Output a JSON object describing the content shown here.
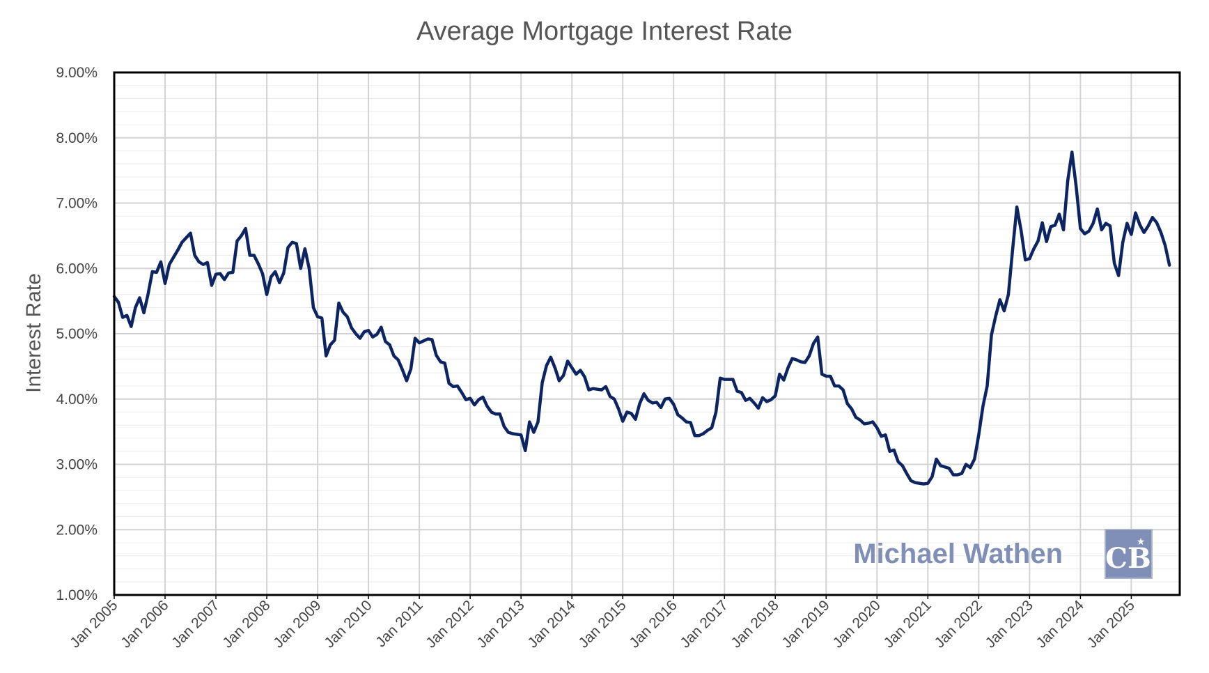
{
  "chart_data": {
    "type": "line",
    "title": "Average Mortgage Interest Rate",
    "xlabel": "",
    "ylabel": "Interest Rate",
    "ylim": [
      0.01,
      0.09
    ],
    "ytick_step": 0.01,
    "y_format": "percent-2",
    "grid": true,
    "x_tick_labels": [
      "Jan 2005",
      "Jan 2006",
      "Jan 2007",
      "Jan 2008",
      "Jan 2009",
      "Jan 2010",
      "Jan 2011",
      "Jan 2012",
      "Jan 2013",
      "Jan 2014",
      "Jan 2015",
      "Jan 2016",
      "Jan 2017",
      "Jan 2018",
      "Jan 2019",
      "Jan 2020",
      "Jan 2021",
      "Jan 2022",
      "Jan 2023",
      "Jan 2024",
      "Jan 2025"
    ],
    "series": [
      {
        "color": "#0c2461",
        "points": [
          [
            "2005-01",
            5.57
          ],
          [
            "2005-02",
            5.48
          ],
          [
            "2005-03",
            5.25
          ],
          [
            "2005-04",
            5.28
          ],
          [
            "2005-05",
            5.11
          ],
          [
            "2005-06",
            5.4
          ],
          [
            "2005-07",
            5.55
          ],
          [
            "2005-08",
            5.32
          ],
          [
            "2005-09",
            5.61
          ],
          [
            "2005-10",
            5.95
          ],
          [
            "2005-11",
            5.94
          ],
          [
            "2005-12",
            6.1
          ],
          [
            "2006-01",
            5.77
          ],
          [
            "2006-02",
            6.06
          ],
          [
            "2006-03",
            6.17
          ],
          [
            "2006-04",
            6.28
          ],
          [
            "2006-05",
            6.4
          ],
          [
            "2006-06",
            6.47
          ],
          [
            "2006-07",
            6.54
          ],
          [
            "2006-08",
            6.2
          ],
          [
            "2006-09",
            6.1
          ],
          [
            "2006-10",
            6.06
          ],
          [
            "2006-11",
            6.09
          ],
          [
            "2006-12",
            5.74
          ],
          [
            "2007-01",
            5.91
          ],
          [
            "2007-02",
            5.92
          ],
          [
            "2007-03",
            5.83
          ],
          [
            "2007-04",
            5.93
          ],
          [
            "2007-05",
            5.94
          ],
          [
            "2007-06",
            6.42
          ],
          [
            "2007-07",
            6.5
          ],
          [
            "2007-08",
            6.61
          ],
          [
            "2007-09",
            6.2
          ],
          [
            "2007-10",
            6.2
          ],
          [
            "2007-11",
            6.07
          ],
          [
            "2007-12",
            5.92
          ],
          [
            "2008-01",
            5.6
          ],
          [
            "2008-02",
            5.87
          ],
          [
            "2008-03",
            5.95
          ],
          [
            "2008-04",
            5.78
          ],
          [
            "2008-05",
            5.93
          ],
          [
            "2008-06",
            6.32
          ],
          [
            "2008-07",
            6.4
          ],
          [
            "2008-08",
            6.38
          ],
          [
            "2008-09",
            6.0
          ],
          [
            "2008-10",
            6.3
          ],
          [
            "2008-11",
            6.0
          ],
          [
            "2008-12",
            5.4
          ],
          [
            "2009-01",
            5.26
          ],
          [
            "2009-02",
            5.24
          ],
          [
            "2009-03",
            4.66
          ],
          [
            "2009-04",
            4.83
          ],
          [
            "2009-05",
            4.9
          ],
          [
            "2009-06",
            5.47
          ],
          [
            "2009-07",
            5.33
          ],
          [
            "2009-08",
            5.26
          ],
          [
            "2009-09",
            5.09
          ],
          [
            "2009-10",
            5.0
          ],
          [
            "2009-11",
            4.93
          ],
          [
            "2009-12",
            5.03
          ],
          [
            "2010-01",
            5.05
          ],
          [
            "2010-02",
            4.95
          ],
          [
            "2010-03",
            4.99
          ],
          [
            "2010-04",
            5.1
          ],
          [
            "2010-05",
            4.88
          ],
          [
            "2010-06",
            4.83
          ],
          [
            "2010-07",
            4.66
          ],
          [
            "2010-08",
            4.6
          ],
          [
            "2010-09",
            4.45
          ],
          [
            "2010-10",
            4.28
          ],
          [
            "2010-11",
            4.46
          ],
          [
            "2010-12",
            4.93
          ],
          [
            "2011-01",
            4.86
          ],
          [
            "2011-02",
            4.89
          ],
          [
            "2011-03",
            4.92
          ],
          [
            "2011-04",
            4.91
          ],
          [
            "2011-05",
            4.67
          ],
          [
            "2011-06",
            4.57
          ],
          [
            "2011-07",
            4.55
          ],
          [
            "2011-08",
            4.24
          ],
          [
            "2011-09",
            4.19
          ],
          [
            "2011-10",
            4.2
          ],
          [
            "2011-11",
            4.1
          ],
          [
            "2011-12",
            3.99
          ],
          [
            "2012-01",
            4.01
          ],
          [
            "2012-02",
            3.91
          ],
          [
            "2012-03",
            3.99
          ],
          [
            "2012-04",
            4.03
          ],
          [
            "2012-05",
            3.89
          ],
          [
            "2012-06",
            3.8
          ],
          [
            "2012-07",
            3.77
          ],
          [
            "2012-08",
            3.77
          ],
          [
            "2012-09",
            3.58
          ],
          [
            "2012-10",
            3.49
          ],
          [
            "2012-11",
            3.47
          ],
          [
            "2012-12",
            3.46
          ],
          [
            "2013-01",
            3.45
          ],
          [
            "2013-02",
            3.21
          ],
          [
            "2013-03",
            3.65
          ],
          [
            "2013-04",
            3.49
          ],
          [
            "2013-05",
            3.65
          ],
          [
            "2013-06",
            4.25
          ],
          [
            "2013-07",
            4.51
          ],
          [
            "2013-08",
            4.64
          ],
          [
            "2013-09",
            4.48
          ],
          [
            "2013-10",
            4.28
          ],
          [
            "2013-11",
            4.36
          ],
          [
            "2013-12",
            4.58
          ],
          [
            "2014-01",
            4.48
          ],
          [
            "2014-02",
            4.38
          ],
          [
            "2014-03",
            4.44
          ],
          [
            "2014-04",
            4.34
          ],
          [
            "2014-05",
            4.14
          ],
          [
            "2014-06",
            4.16
          ],
          [
            "2014-07",
            4.15
          ],
          [
            "2014-08",
            4.14
          ],
          [
            "2014-09",
            4.19
          ],
          [
            "2014-10",
            4.04
          ],
          [
            "2014-11",
            4.0
          ],
          [
            "2014-12",
            3.85
          ],
          [
            "2015-01",
            3.66
          ],
          [
            "2015-02",
            3.8
          ],
          [
            "2015-03",
            3.78
          ],
          [
            "2015-04",
            3.69
          ],
          [
            "2015-05",
            3.93
          ],
          [
            "2015-06",
            4.08
          ],
          [
            "2015-07",
            3.98
          ],
          [
            "2015-08",
            3.94
          ],
          [
            "2015-09",
            3.95
          ],
          [
            "2015-10",
            3.87
          ],
          [
            "2015-11",
            4.0
          ],
          [
            "2015-12",
            4.01
          ],
          [
            "2016-01",
            3.92
          ],
          [
            "2016-02",
            3.76
          ],
          [
            "2016-03",
            3.71
          ],
          [
            "2016-04",
            3.65
          ],
          [
            "2016-05",
            3.64
          ],
          [
            "2016-06",
            3.44
          ],
          [
            "2016-07",
            3.44
          ],
          [
            "2016-08",
            3.47
          ],
          [
            "2016-09",
            3.52
          ],
          [
            "2016-10",
            3.56
          ],
          [
            "2016-11",
            3.8
          ],
          [
            "2016-12",
            4.32
          ],
          [
            "2017-01",
            4.3
          ],
          [
            "2017-02",
            4.3
          ],
          [
            "2017-03",
            4.3
          ],
          [
            "2017-04",
            4.12
          ],
          [
            "2017-05",
            4.1
          ],
          [
            "2017-06",
            3.98
          ],
          [
            "2017-07",
            4.01
          ],
          [
            "2017-08",
            3.94
          ],
          [
            "2017-09",
            3.86
          ],
          [
            "2017-10",
            4.02
          ],
          [
            "2017-11",
            3.96
          ],
          [
            "2017-12",
            3.99
          ],
          [
            "2018-01",
            4.05
          ],
          [
            "2018-02",
            4.38
          ],
          [
            "2018-03",
            4.29
          ],
          [
            "2018-04",
            4.48
          ],
          [
            "2018-05",
            4.62
          ],
          [
            "2018-06",
            4.6
          ],
          [
            "2018-07",
            4.57
          ],
          [
            "2018-08",
            4.56
          ],
          [
            "2018-09",
            4.66
          ],
          [
            "2018-10",
            4.85
          ],
          [
            "2018-11",
            4.95
          ],
          [
            "2018-12",
            4.38
          ],
          [
            "2019-01",
            4.35
          ],
          [
            "2019-02",
            4.35
          ],
          [
            "2019-03",
            4.2
          ],
          [
            "2019-04",
            4.2
          ],
          [
            "2019-05",
            4.14
          ],
          [
            "2019-06",
            3.93
          ],
          [
            "2019-07",
            3.85
          ],
          [
            "2019-08",
            3.72
          ],
          [
            "2019-09",
            3.68
          ],
          [
            "2019-10",
            3.62
          ],
          [
            "2019-11",
            3.63
          ],
          [
            "2019-12",
            3.65
          ],
          [
            "2020-01",
            3.56
          ],
          [
            "2020-02",
            3.43
          ],
          [
            "2020-03",
            3.45
          ],
          [
            "2020-04",
            3.2
          ],
          [
            "2020-05",
            3.22
          ],
          [
            "2020-06",
            3.04
          ],
          [
            "2020-07",
            2.98
          ],
          [
            "2020-08",
            2.86
          ],
          [
            "2020-09",
            2.75
          ],
          [
            "2020-10",
            2.72
          ],
          [
            "2020-11",
            2.71
          ],
          [
            "2020-12",
            2.7
          ],
          [
            "2021-01",
            2.71
          ],
          [
            "2021-02",
            2.81
          ],
          [
            "2021-03",
            3.08
          ],
          [
            "2021-04",
            2.98
          ],
          [
            "2021-05",
            2.96
          ],
          [
            "2021-06",
            2.94
          ],
          [
            "2021-07",
            2.84
          ],
          [
            "2021-08",
            2.84
          ],
          [
            "2021-09",
            2.86
          ],
          [
            "2021-10",
            3.0
          ],
          [
            "2021-11",
            2.95
          ],
          [
            "2021-12",
            3.08
          ],
          [
            "2022-01",
            3.45
          ],
          [
            "2022-02",
            3.89
          ],
          [
            "2022-03",
            4.2
          ],
          [
            "2022-04",
            4.98
          ],
          [
            "2022-05",
            5.27
          ],
          [
            "2022-06",
            5.52
          ],
          [
            "2022-07",
            5.35
          ],
          [
            "2022-08",
            5.6
          ],
          [
            "2022-09",
            6.29
          ],
          [
            "2022-10",
            6.94
          ],
          [
            "2022-11",
            6.58
          ],
          [
            "2022-12",
            6.13
          ],
          [
            "2023-01",
            6.15
          ],
          [
            "2023-02",
            6.3
          ],
          [
            "2023-03",
            6.42
          ],
          [
            "2023-04",
            6.7
          ],
          [
            "2023-05",
            6.41
          ],
          [
            "2023-06",
            6.64
          ],
          [
            "2023-07",
            6.66
          ],
          [
            "2023-08",
            6.83
          ],
          [
            "2023-09",
            6.59
          ],
          [
            "2023-10",
            7.34
          ],
          [
            "2023-11",
            7.78
          ],
          [
            "2023-12",
            7.25
          ],
          [
            "2024-01",
            6.61
          ],
          [
            "2024-02",
            6.53
          ],
          [
            "2024-03",
            6.57
          ],
          [
            "2024-04",
            6.69
          ],
          [
            "2024-05",
            6.91
          ],
          [
            "2024-06",
            6.59
          ],
          [
            "2024-07",
            6.69
          ],
          [
            "2024-08",
            6.65
          ],
          [
            "2024-09",
            6.08
          ],
          [
            "2024-10",
            5.89
          ],
          [
            "2024-11",
            6.4
          ],
          [
            "2024-12",
            6.69
          ],
          [
            "2025-01",
            6.52
          ],
          [
            "2025-02",
            6.85
          ],
          [
            "2025-03",
            6.67
          ],
          [
            "2025-04",
            6.55
          ],
          [
            "2025-05",
            6.65
          ],
          [
            "2025-06",
            6.78
          ],
          [
            "2025-07",
            6.7
          ],
          [
            "2025-08",
            6.55
          ],
          [
            "2025-09",
            6.35
          ],
          [
            "2025-10",
            6.05
          ]
        ]
      }
    ]
  },
  "watermark": {
    "text": "Michael Wathen",
    "logo_icon": "coldwell-banker-cb-logo-icon",
    "color": "#7f8fb5"
  },
  "colors": {
    "line": "#0c2461",
    "grid_major": "#d3d3d3",
    "grid_minor": "#ececec",
    "frame": "#000000"
  }
}
